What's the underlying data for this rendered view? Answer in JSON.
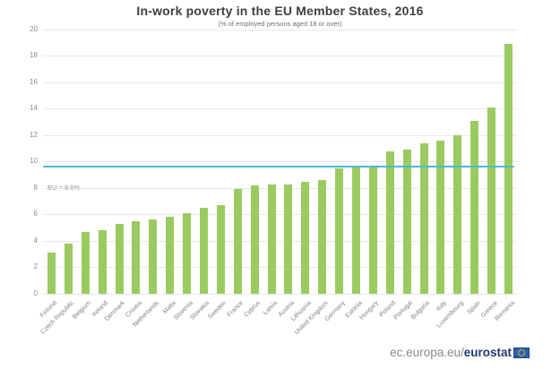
{
  "title": "In-work poverty in the EU Member States, 2016",
  "subtitle": "(% of employed persons aged 18 or over)",
  "footer": {
    "url_prefix": "ec.europa.eu/",
    "brand": "eurostat",
    "flag_icon": "eu-flag"
  },
  "colors": {
    "bar": "#9bcb60",
    "reference_line": "#4db8d6",
    "grid": "#e8e8e8",
    "axis_text": "#8c8c8c",
    "title_text": "#3f3f3f",
    "brand_blue": "#1e3a6e",
    "flag_blue": "#2a5db0",
    "flag_stars": "#ffd617"
  },
  "chart_data": {
    "type": "bar",
    "title": "In-work poverty in the EU Member States, 2016",
    "subtitle": "(% of employed persons aged 18 or over)",
    "categories": [
      "Finland",
      "Czech Republic",
      "Belgium",
      "Ireland",
      "Denmark",
      "Croatia",
      "Netherlands",
      "Malta",
      "Slovenia",
      "Slovakia",
      "Sweden",
      "France",
      "Cyprus",
      "Latvia",
      "Austria",
      "Lithuania",
      "United Kingdom",
      "Germany",
      "Estonia",
      "Hungary",
      "Poland",
      "Portugal",
      "Bulgaria",
      "Italy",
      "Luxembourg",
      "Spain",
      "Greece",
      "Romania"
    ],
    "values": [
      3.1,
      3.8,
      4.7,
      4.8,
      5.3,
      5.5,
      5.6,
      5.8,
      6.1,
      6.5,
      6.7,
      7.9,
      8.2,
      8.3,
      8.3,
      8.5,
      8.6,
      9.5,
      9.6,
      9.7,
      10.8,
      10.9,
      11.4,
      11.6,
      12.0,
      13.1,
      14.1,
      18.9
    ],
    "xlabel": "",
    "ylabel": "",
    "ylim": [
      0,
      20
    ],
    "ytick_step": 2,
    "yticks": [
      0,
      2,
      4,
      6,
      8,
      10,
      12,
      14,
      16,
      18,
      20
    ],
    "grid": true,
    "legend": false,
    "reference_line": {
      "label": "EU = 9.6%",
      "value": 9.6
    }
  }
}
